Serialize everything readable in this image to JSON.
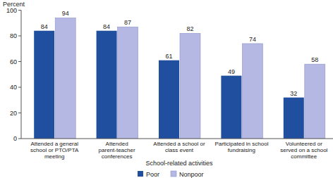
{
  "chart_data": {
    "type": "bar",
    "y_label": "Percent",
    "x_label": "School-related activities",
    "categories": [
      "Attended a general school or PTO/PTA meeting",
      "Attended parent-teacher conferences",
      "Attended a school or class event",
      "Participated in school fundraising",
      "Volunteered or served on a school committee"
    ],
    "series": [
      {
        "name": "Poor",
        "color": "#1f4f9e",
        "values": [
          84,
          84,
          61,
          49,
          32
        ]
      },
      {
        "name": "Nonpoor",
        "color": "#b5b8e2",
        "values": [
          94,
          87,
          82,
          74,
          58
        ]
      }
    ],
    "ylim": [
      0,
      100
    ],
    "yticks": [
      0,
      20,
      40,
      60,
      80,
      100
    ],
    "grid": false,
    "data_labels": true,
    "legend": "bottom"
  }
}
